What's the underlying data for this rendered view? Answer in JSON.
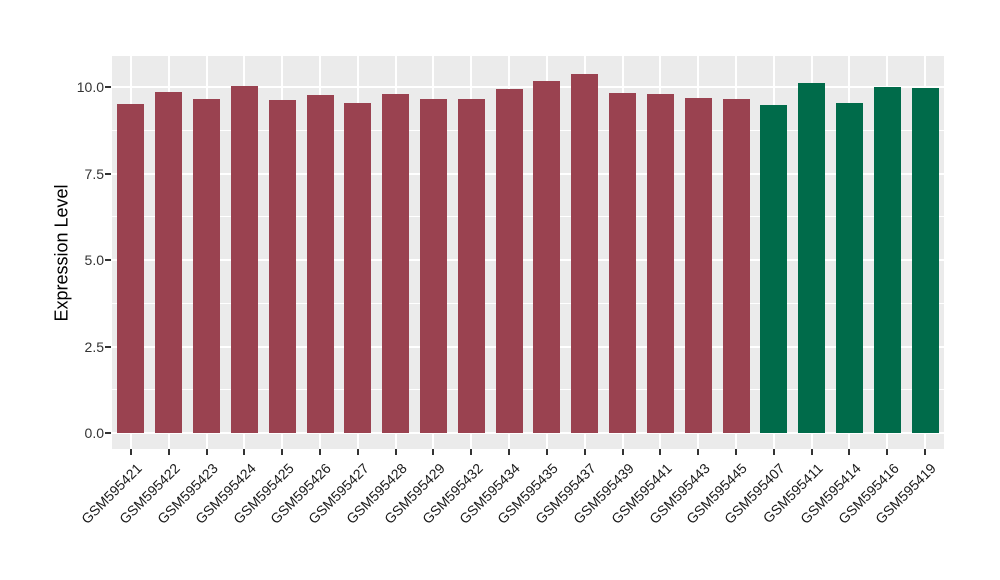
{
  "chart_data": {
    "type": "bar",
    "title": "",
    "xlabel": "",
    "ylabel": "Expression Level",
    "ylim": [
      0,
      10.9
    ],
    "yticks": [
      0.0,
      2.5,
      5.0,
      7.5,
      10.0
    ],
    "ytick_labels": [
      "0.0",
      "2.5",
      "5.0",
      "7.5",
      "10.0"
    ],
    "minor_yticks": [
      1.25,
      3.75,
      6.25,
      8.75
    ],
    "grid": "white major+minor horizontal lines and white vertical lines at bar centers on gray panel",
    "legend": "none",
    "categories": [
      "GSM595421",
      "GSM595422",
      "GSM595423",
      "GSM595424",
      "GSM595425",
      "GSM595426",
      "GSM595427",
      "GSM595428",
      "GSM595429",
      "GSM595432",
      "GSM595434",
      "GSM595435",
      "GSM595437",
      "GSM595439",
      "GSM595441",
      "GSM595443",
      "GSM595445",
      "GSM595407",
      "GSM595411",
      "GSM595414",
      "GSM595416",
      "GSM595419"
    ],
    "values": [
      9.5,
      9.85,
      9.66,
      10.04,
      9.62,
      9.76,
      9.55,
      9.79,
      9.64,
      9.65,
      9.93,
      10.17,
      10.37,
      9.84,
      9.81,
      9.69,
      9.64,
      9.48,
      10.11,
      9.55,
      10.0,
      9.98
    ],
    "bar_groups": [
      "red",
      "red",
      "red",
      "red",
      "red",
      "red",
      "red",
      "red",
      "red",
      "red",
      "red",
      "red",
      "red",
      "red",
      "red",
      "red",
      "red",
      "green",
      "green",
      "green",
      "green",
      "green"
    ],
    "group_colors": {
      "red": "#9A4250",
      "green": "#006B4A"
    },
    "style": {
      "panel_bg": "#EBEBEB",
      "grid_color": "#FFFFFF",
      "axis_text_color": "#333333",
      "axis_title_color": "#000000"
    }
  }
}
